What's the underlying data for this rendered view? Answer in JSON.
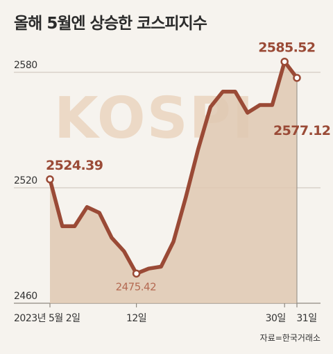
{
  "title": "올해 5월엔 상승한 코스피지수",
  "watermark": "KOSPI",
  "source": "자료=한국거래소",
  "chart_data": {
    "type": "area",
    "ylim": [
      2460,
      2590
    ],
    "yticks": [
      2460,
      2520,
      2580
    ],
    "grid": true,
    "xticks": [
      {
        "index": 0,
        "label": "2023년 5월 2일"
      },
      {
        "index": 7,
        "label": "12일"
      },
      {
        "index": 19,
        "label": "30일"
      },
      {
        "index": 20,
        "label": "31일"
      }
    ],
    "values": [
      2524.39,
      2500,
      2500,
      2510,
      2507,
      2494,
      2487,
      2475.42,
      2478,
      2479,
      2492,
      2515,
      2540,
      2562,
      2570,
      2570,
      2559,
      2563,
      2563,
      2585.52,
      2577.12
    ],
    "annotations": [
      {
        "index": 0,
        "label": "2524.39",
        "style": "dark"
      },
      {
        "index": 7,
        "label": "2475.42",
        "style": "light"
      },
      {
        "index": 19,
        "label": "2585.52",
        "style": "dark"
      },
      {
        "index": 20,
        "label": "2577.12",
        "style": "dark"
      }
    ],
    "colors": {
      "line": "#9a4a36",
      "fill": "#dfc8b2",
      "marker_fill": "#ffffff"
    }
  }
}
